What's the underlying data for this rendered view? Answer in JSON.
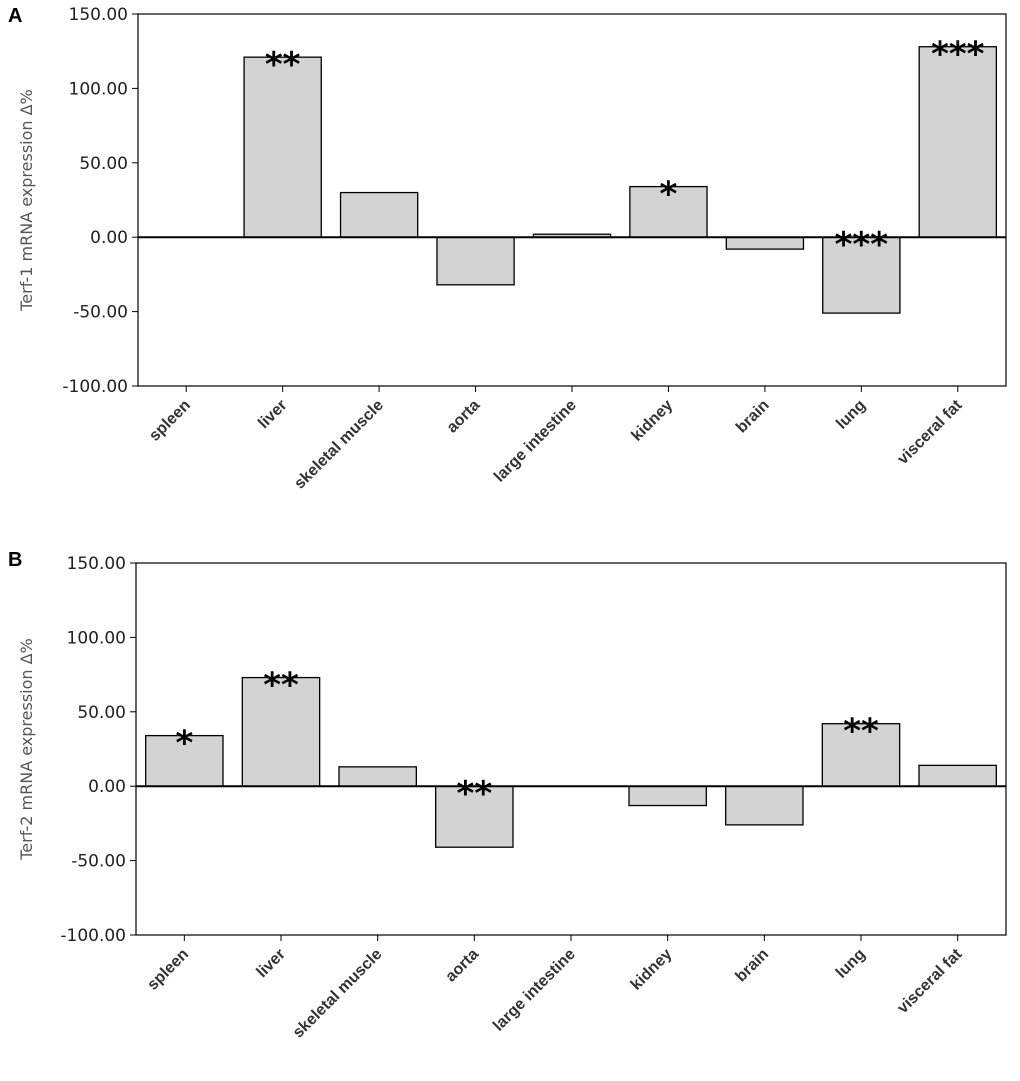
{
  "chart_data": [
    {
      "type": "bar",
      "panel_label": "A",
      "ylabel": "Terf-1 mRNA expression Δ%",
      "ylim": [
        -100,
        150
      ],
      "yticks": [
        150,
        100,
        50,
        0,
        -50,
        -100
      ],
      "ytick_labels": [
        "150.00",
        "100.00",
        "50.00",
        "0.00",
        "-50.00",
        "-100.00"
      ],
      "categories": [
        "spleen",
        "liver",
        "skeletal muscle",
        "aorta",
        "large intestine",
        "kidney",
        "brain",
        "lung",
        "visceral fat"
      ],
      "values": [
        0,
        121,
        30,
        -32,
        2,
        34,
        -8,
        -51,
        128
      ],
      "significance": [
        "",
        "**",
        "",
        "",
        "",
        "*",
        "",
        "***",
        "***"
      ],
      "bar_color": "#d3d3d3",
      "grid": false,
      "legend": "none"
    },
    {
      "type": "bar",
      "panel_label": "B",
      "ylabel": "Terf-2 mRNA expression Δ%",
      "ylim": [
        -100,
        150
      ],
      "yticks": [
        150,
        100,
        50,
        0,
        -50,
        -100
      ],
      "ytick_labels": [
        "150.00",
        "100.00",
        "50.00",
        "0.00",
        "-50.00",
        "-100.00"
      ],
      "categories": [
        "spleen",
        "liver",
        "skeletal muscle",
        "aorta",
        "large intestine",
        "kidney",
        "brain",
        "lung",
        "visceral fat"
      ],
      "values": [
        34,
        73,
        13,
        -41,
        0,
        -13,
        -26,
        42,
        14
      ],
      "significance": [
        "*",
        "**",
        "",
        "**",
        "",
        "",
        "",
        "**",
        ""
      ],
      "bar_color": "#d3d3d3",
      "grid": false,
      "legend": "none"
    }
  ]
}
